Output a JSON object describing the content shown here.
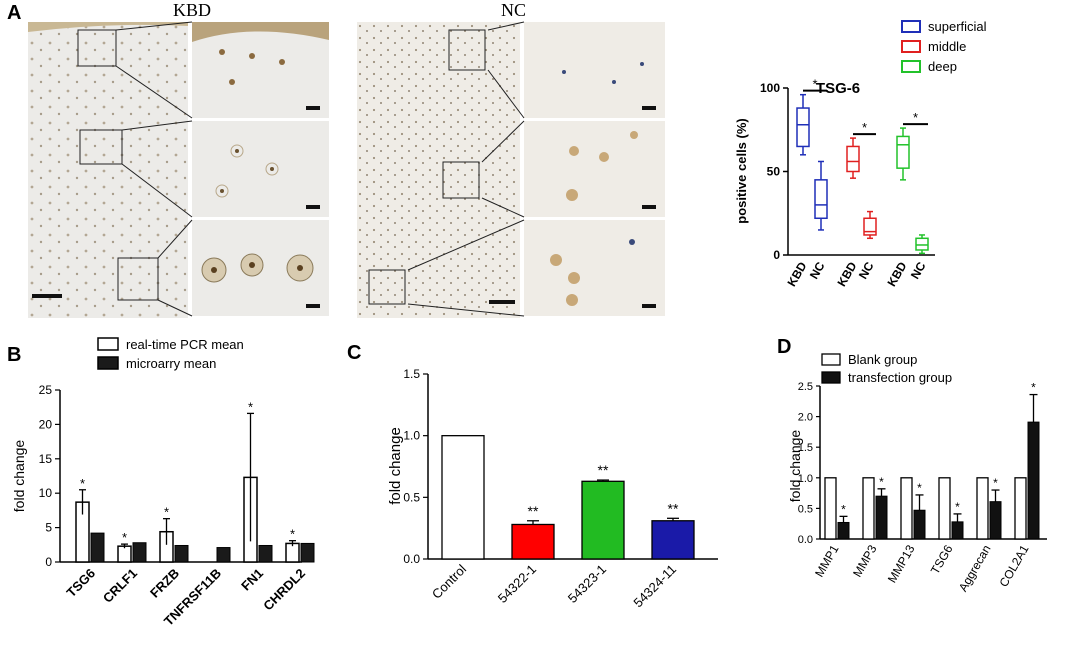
{
  "panel_labels": {
    "a": "A",
    "b": "B",
    "c": "C",
    "d": "D"
  },
  "micrographs": {
    "kbd_title": "KBD",
    "nc_title": "NC"
  },
  "colors": {
    "superficial": "#1f2fb8",
    "middle": "#e02020",
    "deep": "#22c22a",
    "c_control": "#ffffff",
    "c_54322": "#ff0000",
    "c_54323": "#22bb22",
    "c_54324": "#1a1aa8"
  },
  "chart_data": [
    {
      "id": "A-boxplot",
      "type": "box",
      "title": "TSG-6",
      "ylabel": "positive cells (%)",
      "ylim": [
        0,
        100
      ],
      "yticks": [
        "0",
        "50",
        "100"
      ],
      "categories": [
        "KBD",
        "NC",
        "KBD",
        "NC",
        "KBD",
        "NC"
      ],
      "legend": [
        "superficial",
        "middle",
        "deep"
      ],
      "legend_position": "top-right",
      "groups": [
        {
          "name": "superficial",
          "boxes": [
            {
              "cat": "KBD",
              "min": 60,
              "q1": 65,
              "median": 78,
              "q3": 88,
              "max": 96
            },
            {
              "cat": "NC",
              "min": 15,
              "q1": 22,
              "median": 30,
              "q3": 45,
              "max": 56
            }
          ],
          "sig": "*"
        },
        {
          "name": "middle",
          "boxes": [
            {
              "cat": "KBD",
              "min": 46,
              "q1": 50,
              "median": 56,
              "q3": 65,
              "max": 70
            },
            {
              "cat": "NC",
              "min": 10,
              "q1": 12,
              "median": 14,
              "q3": 22,
              "max": 26
            }
          ],
          "sig": "*"
        },
        {
          "name": "deep",
          "boxes": [
            {
              "cat": "KBD",
              "min": 45,
              "q1": 52,
              "median": 66,
              "q3": 71,
              "max": 76
            },
            {
              "cat": "NC",
              "min": 1,
              "q1": 3,
              "median": 6,
              "q3": 10,
              "max": 12
            }
          ],
          "sig": "*"
        }
      ]
    },
    {
      "id": "B-bar",
      "type": "bar",
      "ylabel": "fold change",
      "ylim": [
        0,
        25
      ],
      "yticks": [
        "0",
        "5",
        "10",
        "15",
        "20",
        "25"
      ],
      "categories": [
        "TSG6",
        "CRLF1",
        "FRZB",
        "TNFRSF11B",
        "FN1",
        "CHRDL2"
      ],
      "legend_position": "top",
      "series": [
        {
          "name": "real-time PCR mean",
          "values": [
            8.7,
            2.3,
            4.4,
            null,
            12.3,
            2.7
          ],
          "errors": [
            1.8,
            0.3,
            1.9,
            null,
            9.3,
            0.4
          ],
          "sig": [
            "*",
            "*",
            "*",
            "",
            "*",
            "*"
          ]
        },
        {
          "name": "microarry mean",
          "values": [
            4.2,
            2.8,
            2.4,
            2.1,
            2.4,
            2.7
          ]
        }
      ]
    },
    {
      "id": "C-bar",
      "type": "bar",
      "ylabel": "fold change",
      "ylim": [
        0,
        1.5
      ],
      "yticks": [
        "0.0",
        "0.5",
        "1.0",
        "1.5"
      ],
      "categories": [
        "Control",
        "54322-1",
        "54323-1",
        "54324-11"
      ],
      "values": [
        1.0,
        0.28,
        0.63,
        0.31
      ],
      "errors": [
        0,
        0.03,
        0.01,
        0.02
      ],
      "sig": [
        "",
        "**",
        "**",
        "**"
      ]
    },
    {
      "id": "D-bar",
      "type": "bar",
      "ylabel": "fold change",
      "ylim": [
        0,
        2.5
      ],
      "yticks": [
        "0.0",
        "0.5",
        "1.0",
        "1.5",
        "2.0",
        "2.5"
      ],
      "categories": [
        "MMP1",
        "MMP3",
        "MMP13",
        "TSG6",
        "Aggrecan",
        "COL2A1"
      ],
      "legend_position": "top-left",
      "series": [
        {
          "name": "Blank  group",
          "values": [
            1,
            1,
            1,
            1,
            1,
            1
          ]
        },
        {
          "name": "transfection group",
          "values": [
            0.27,
            0.7,
            0.47,
            0.28,
            0.61,
            1.91
          ],
          "errors": [
            0.1,
            0.12,
            0.25,
            0.13,
            0.19,
            0.45
          ],
          "sig": [
            "*",
            "*",
            "*",
            "*",
            "*",
            "*"
          ]
        }
      ]
    }
  ]
}
